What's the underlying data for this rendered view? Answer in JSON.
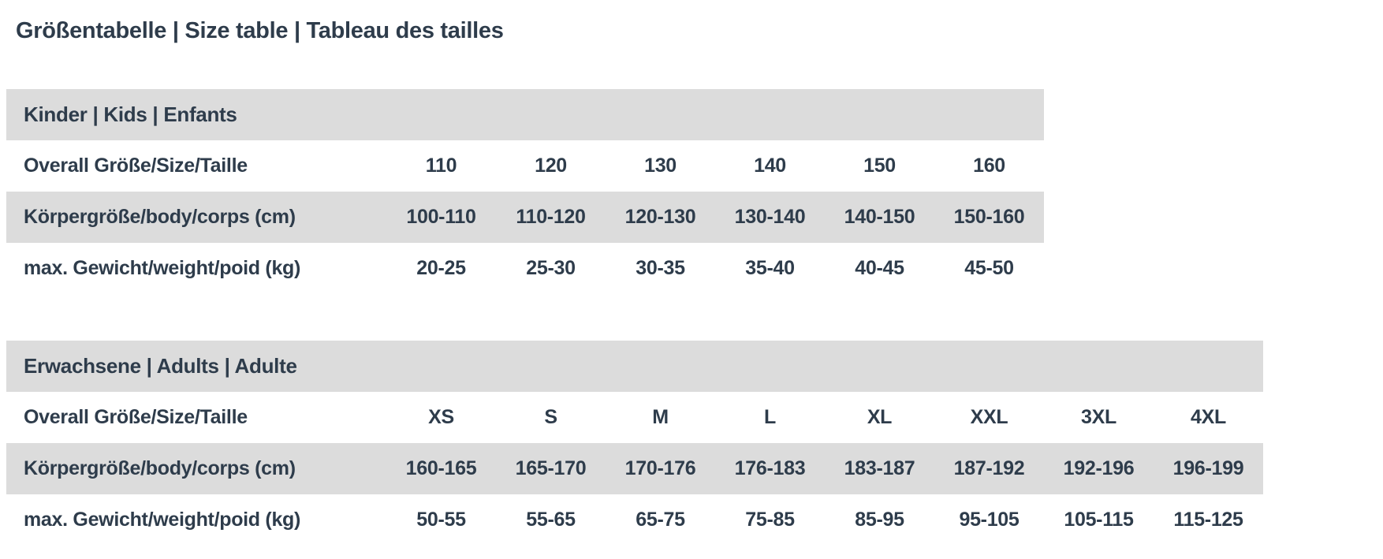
{
  "page": {
    "title": "Größentabelle | Size table | Tableau des tailles",
    "colors": {
      "text": "#2e3c4b",
      "row_band": "#dcdcdc",
      "background": "#ffffff"
    }
  },
  "tables": [
    {
      "id": "kids",
      "header": "Kinder | Kids | Enfants",
      "columns": 6,
      "rows": [
        {
          "label": "Overall Größe/Size/Taille",
          "values": [
            "110",
            "120",
            "130",
            "140",
            "150",
            "160"
          ]
        },
        {
          "label": "Körpergröße/body/corps (cm)",
          "values": [
            "100-110",
            "110-120",
            "120-130",
            "130-140",
            "140-150",
            "150-160"
          ]
        },
        {
          "label": "max. Gewicht/weight/poid (kg)",
          "values": [
            "20-25",
            "25-30",
            "30-35",
            "35-40",
            "40-45",
            "45-50"
          ]
        }
      ]
    },
    {
      "id": "adults",
      "header": "Erwachsene | Adults | Adulte",
      "columns": 8,
      "rows": [
        {
          "label": "Overall Größe/Size/Taille",
          "values": [
            "XS",
            "S",
            "M",
            "L",
            "XL",
            "XXL",
            "3XL",
            "4XL"
          ]
        },
        {
          "label": "Körpergröße/body/corps (cm)",
          "values": [
            "160-165",
            "165-170",
            "170-176",
            "176-183",
            "183-187",
            "187-192",
            "192-196",
            "196-199"
          ]
        },
        {
          "label": "max. Gewicht/weight/poid (kg)",
          "values": [
            "50-55",
            "55-65",
            "65-75",
            "75-85",
            "85-95",
            "95-105",
            "105-115",
            "115-125"
          ]
        }
      ]
    }
  ]
}
